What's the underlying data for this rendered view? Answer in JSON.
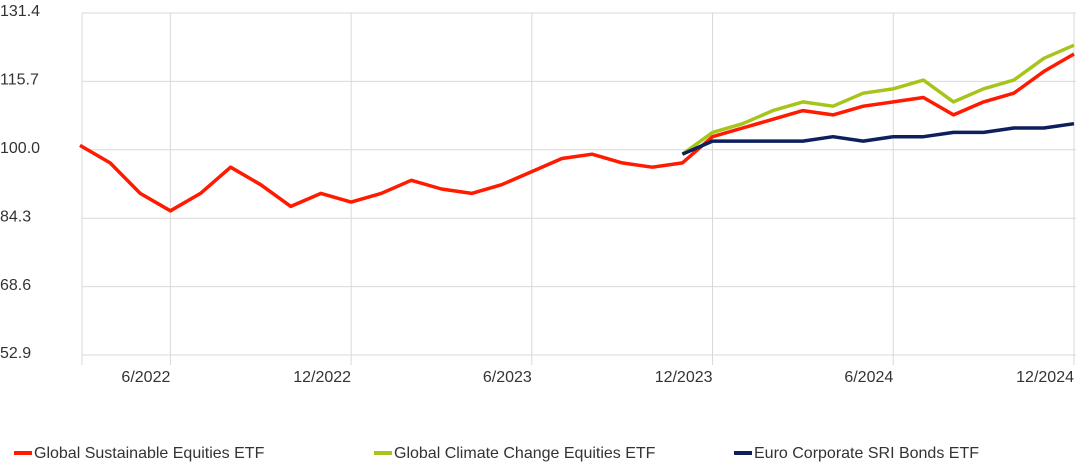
{
  "chart_data": {
    "type": "line",
    "x": [
      "3/2022",
      "4/2022",
      "5/2022",
      "6/2022",
      "7/2022",
      "8/2022",
      "9/2022",
      "10/2022",
      "11/2022",
      "12/2022",
      "1/2023",
      "2/2023",
      "3/2023",
      "4/2023",
      "5/2023",
      "6/2023",
      "7/2023",
      "8/2023",
      "9/2023",
      "10/2023",
      "11/2023",
      "12/2023",
      "1/2024",
      "2/2024",
      "3/2024",
      "4/2024",
      "5/2024",
      "6/2024",
      "7/2024",
      "8/2024",
      "9/2024",
      "10/2024",
      "11/2024",
      "12/2024"
    ],
    "xticks": [
      "6/2022",
      "12/2022",
      "6/2023",
      "12/2023",
      "6/2024",
      "12/2024"
    ],
    "series": [
      {
        "name": "Global Sustainable Equities ETF",
        "color": "#ff1a00",
        "values": [
          101,
          97,
          90,
          86,
          90,
          96,
          92,
          87,
          90,
          88,
          90,
          93,
          91,
          90,
          92,
          95,
          98,
          99,
          97,
          96,
          97,
          103,
          105,
          107,
          109,
          108,
          110,
          111,
          112,
          108,
          111,
          113,
          118,
          122
        ]
      },
      {
        "name": "Global Climate Change Equities ETF",
        "color": "#a6c51a",
        "values": [
          null,
          null,
          null,
          null,
          null,
          null,
          null,
          null,
          null,
          null,
          null,
          null,
          null,
          null,
          null,
          null,
          null,
          null,
          null,
          null,
          99,
          104,
          106,
          109,
          111,
          110,
          113,
          114,
          116,
          111,
          114,
          116,
          121,
          124
        ]
      },
      {
        "name": "Euro Corporate SRI Bonds ETF",
        "color": "#0d1f5c",
        "values": [
          null,
          null,
          null,
          null,
          null,
          null,
          null,
          null,
          null,
          null,
          null,
          null,
          null,
          null,
          null,
          null,
          null,
          null,
          null,
          null,
          99,
          102,
          102,
          102,
          102,
          103,
          102,
          103,
          103,
          104,
          104,
          105,
          105,
          106
        ]
      }
    ],
    "ylim": [
      52.9,
      131.4
    ],
    "yticks": [
      52.9,
      68.6,
      84.3,
      {
        "value": 100,
        "label": "100.0"
      },
      115.7,
      131.4
    ],
    "grid": true,
    "legend": "bottom"
  }
}
